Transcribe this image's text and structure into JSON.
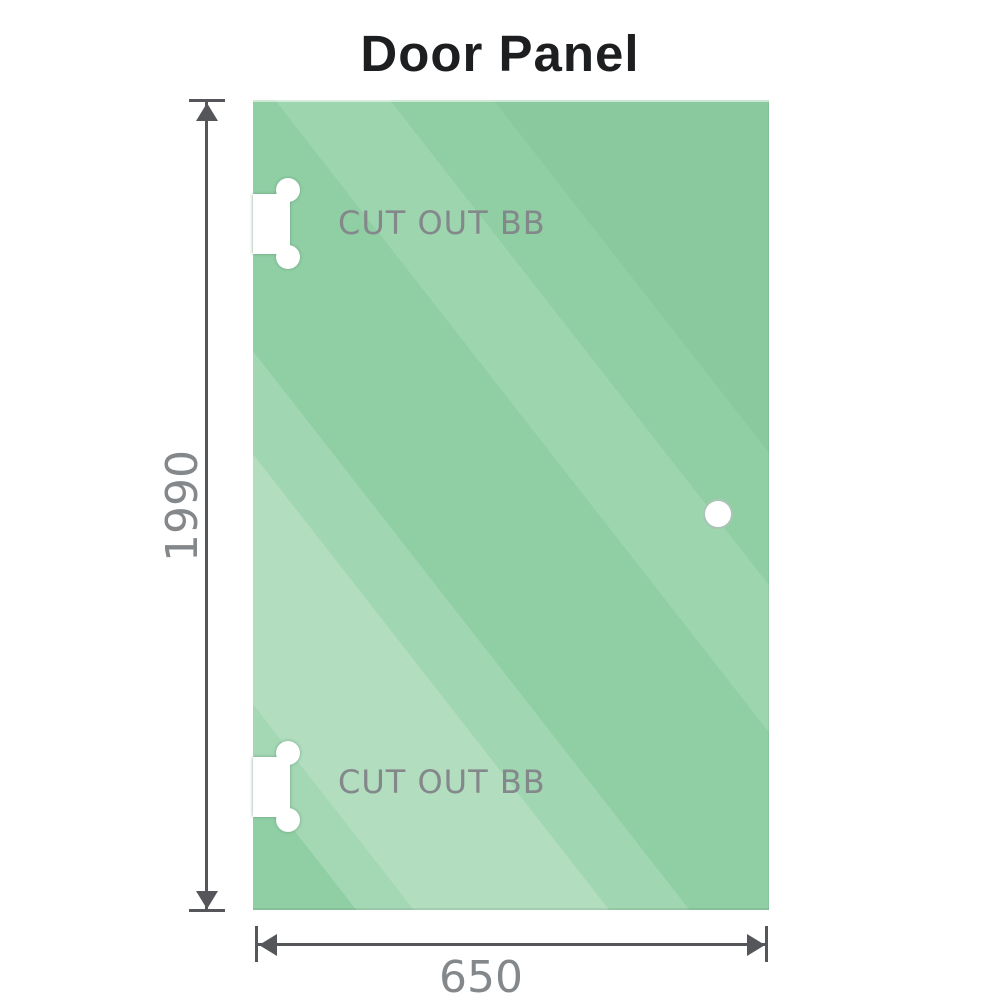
{
  "title": "Door Panel",
  "panel": {
    "height_label": "1990",
    "width_label": "650",
    "cutouts": [
      {
        "label": "CUT OUT BB",
        "position": "top-left"
      },
      {
        "label": "CUT OUT BB",
        "position": "bottom-left"
      }
    ],
    "hole": {
      "position": "middle-right"
    }
  },
  "colors": {
    "glass_base": "#90cfa4",
    "dimension_line": "#55565a",
    "label_text": "#84888b",
    "title_text": "#1d1e20",
    "cutout_fill": "#ffffff"
  }
}
